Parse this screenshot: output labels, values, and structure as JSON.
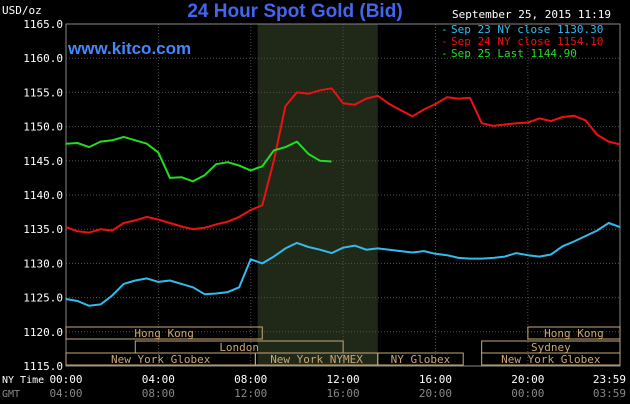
{
  "chart_data": {
    "type": "line",
    "title": "24 Hour Spot Gold (Bid)",
    "ylabel": "USD/oz",
    "website": "www.kitco.com",
    "timestamp": "September 25, 2015 11:19",
    "ylim": [
      1115,
      1165
    ],
    "y_ticks": [
      "1165.0",
      "1160.0",
      "1155.0",
      "1150.0",
      "1145.0",
      "1140.0",
      "1135.0",
      "1130.0",
      "1125.0",
      "1120.0",
      "1115.0"
    ],
    "x_row_labels": {
      "ny": "NY Time",
      "gmt": "GMT"
    },
    "x_ticks_ny": [
      "00:00",
      "04:00",
      "08:00",
      "12:00",
      "16:00",
      "20:00",
      "23:59"
    ],
    "x_ticks_gmt": [
      "04:00",
      "08:00",
      "12:00",
      "16:00",
      "20:00",
      "00:00",
      "03:59"
    ],
    "grid": true,
    "legend": "top-right",
    "colors": {
      "blue": "#33bbee",
      "red": "#ee1111",
      "green": "#22dd22",
      "title": "#4466ee",
      "site": "#4488ff",
      "box": "#c8a878",
      "shade": "#202818",
      "grid": "#505050"
    },
    "legend_items": [
      {
        "label": "Sep 23 NY close 1130.30",
        "color": "#33bbee"
      },
      {
        "label": "Sep 24 NY close 1154.10",
        "color": "#ee1111"
      },
      {
        "label": "Sep 25 Last 1144.90",
        "color": "#22dd22"
      }
    ],
    "market_rows": [
      [
        {
          "label": "Hong Kong",
          "start": 0.0,
          "end": 8.5
        },
        {
          "label": "Hong Kong",
          "start": 20.0,
          "end": 23.99
        }
      ],
      [
        {
          "label": "London",
          "start": 3.0,
          "end": 12.0
        },
        {
          "label": "Sydney",
          "start": 18.0,
          "end": 23.99
        }
      ],
      [
        {
          "label": "New York Globex",
          "start": 0.0,
          "end": 8.2
        },
        {
          "label": "New York NYMEX",
          "start": 8.2,
          "end": 13.5
        },
        {
          "label": "NY Globex",
          "start": 13.5,
          "end": 17.2
        },
        {
          "label": "New York Globex",
          "start": 18.0,
          "end": 23.99
        }
      ]
    ],
    "shade_range": [
      8.3,
      13.5
    ],
    "series": [
      {
        "name": "Sep 23 NY close 1130.30",
        "color": "#33bbee",
        "x": [
          0,
          0.5,
          1,
          1.5,
          2,
          2.5,
          3,
          3.5,
          4,
          4.5,
          5,
          5.5,
          6,
          6.5,
          7,
          7.5,
          8,
          8.5,
          9,
          9.5,
          10,
          10.5,
          11,
          11.5,
          12,
          12.5,
          13,
          13.5,
          14,
          14.5,
          15,
          15.5,
          16,
          16.5,
          17,
          17.5,
          18,
          18.5,
          19,
          19.5,
          20,
          20.5,
          21,
          21.5,
          22,
          22.5,
          23,
          23.5,
          23.99
        ],
        "values": [
          1124.8,
          1124.5,
          1123.8,
          1124.0,
          1125.3,
          1127.0,
          1127.5,
          1127.8,
          1127.3,
          1127.5,
          1127.0,
          1126.5,
          1125.5,
          1125.6,
          1125.8,
          1126.5,
          1130.6,
          1130.0,
          1131.0,
          1132.2,
          1133.0,
          1132.4,
          1132.0,
          1131.5,
          1132.3,
          1132.6,
          1132.0,
          1132.2,
          1132.0,
          1131.8,
          1131.6,
          1131.8,
          1131.4,
          1131.2,
          1130.8,
          1130.7,
          1130.7,
          1130.8,
          1131.0,
          1131.5,
          1131.2,
          1131.0,
          1131.3,
          1132.5,
          1133.2,
          1134.0,
          1134.8,
          1135.9,
          1135.3
        ]
      },
      {
        "name": "Sep 24 NY close 1154.10",
        "color": "#ee1111",
        "x": [
          0,
          0.5,
          1,
          1.5,
          2,
          2.5,
          3,
          3.5,
          4,
          4.5,
          5,
          5.5,
          6,
          6.5,
          7,
          7.5,
          8,
          8.5,
          9,
          9.5,
          10,
          10.5,
          11,
          11.5,
          12,
          12.5,
          13,
          13.5,
          14,
          14.5,
          15,
          15.5,
          16,
          16.5,
          17,
          17.5,
          18,
          18.5,
          19,
          19.5,
          20,
          20.5,
          21,
          21.5,
          22,
          22.5,
          23,
          23.5,
          23.99
        ],
        "values": [
          1135.3,
          1134.7,
          1134.5,
          1135.0,
          1134.8,
          1135.9,
          1136.3,
          1136.8,
          1136.4,
          1135.9,
          1135.4,
          1135.0,
          1135.2,
          1135.7,
          1136.1,
          1136.8,
          1137.8,
          1138.5,
          1145.0,
          1153.0,
          1155.0,
          1154.8,
          1155.3,
          1155.6,
          1153.4,
          1153.2,
          1154.1,
          1154.5,
          1153.3,
          1152.4,
          1151.5,
          1152.5,
          1153.3,
          1154.3,
          1154.1,
          1154.2,
          1150.5,
          1150.1,
          1150.3,
          1150.5,
          1150.6,
          1151.2,
          1150.8,
          1151.4,
          1151.6,
          1150.9,
          1148.8,
          1147.8,
          1147.4
        ]
      },
      {
        "name": "Sep 25 Last 1144.90",
        "color": "#22dd22",
        "x": [
          0,
          0.5,
          1,
          1.5,
          2,
          2.5,
          3,
          3.5,
          4,
          4.5,
          5,
          5.5,
          6,
          6.5,
          7,
          7.5,
          8,
          8.5,
          9,
          9.5,
          10,
          10.5,
          11,
          11.5
        ],
        "values": [
          1147.5,
          1147.6,
          1147.0,
          1147.8,
          1148.0,
          1148.5,
          1148.0,
          1147.5,
          1146.2,
          1142.5,
          1142.6,
          1142.0,
          1142.9,
          1144.5,
          1144.8,
          1144.3,
          1143.6,
          1144.2,
          1146.5,
          1147.0,
          1147.8,
          1146.0,
          1145.0,
          1144.9
        ]
      }
    ]
  }
}
